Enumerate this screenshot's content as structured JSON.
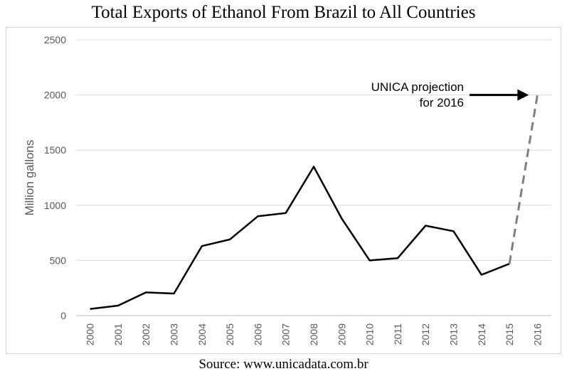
{
  "chart_data": {
    "type": "line",
    "title": "Total Exports of Ethanol From Brazil to All Countries",
    "source": "Source: www.unicadata.com.br",
    "xlabel": "",
    "ylabel": "Million gallons",
    "ylim": [
      0,
      2500
    ],
    "yticks": [
      0,
      500,
      1000,
      1500,
      2000,
      2500
    ],
    "categories": [
      "2000",
      "2001",
      "2002",
      "2003",
      "2004",
      "2005",
      "2006",
      "2007",
      "2008",
      "2009",
      "2010",
      "2011",
      "2012",
      "2013",
      "2014",
      "2015",
      "2016"
    ],
    "series": [
      {
        "values": [
          60,
          90,
          210,
          200,
          630,
          690,
          900,
          930,
          1350,
          880,
          500,
          520,
          815,
          765,
          370,
          470,
          null
        ],
        "color": "#000000",
        "style": "solid"
      },
      {
        "values": [
          null,
          null,
          null,
          null,
          null,
          null,
          null,
          null,
          null,
          null,
          null,
          null,
          null,
          null,
          null,
          470,
          2000
        ],
        "color": "#808080",
        "style": "dashed"
      }
    ],
    "annotations": [
      {
        "lines": [
          "UNICA projection",
          "for 2016"
        ],
        "target_x": "2016",
        "target_y": 2000
      }
    ],
    "grid": {
      "horizontal": true,
      "color": "#d9d9d9"
    }
  }
}
